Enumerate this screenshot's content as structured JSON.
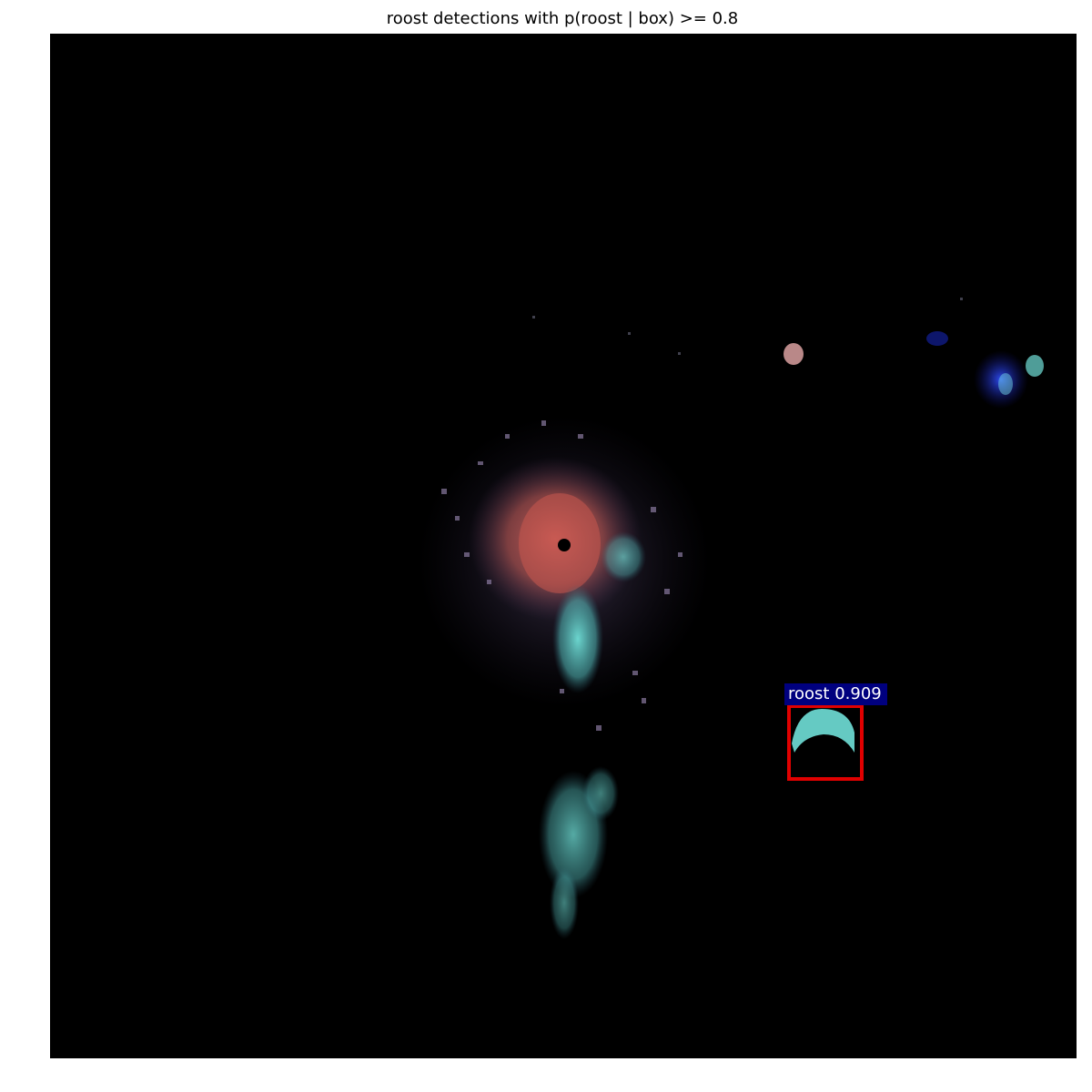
{
  "title": "roost detections with p(roost | box) >= 0.8",
  "detections": [
    {
      "label": "roost 0.909",
      "box_color": "#e00000",
      "label_bg": "#00007f"
    }
  ],
  "colors": {
    "background": "#000000",
    "echo_red": "#c0504d",
    "echo_cyan": "#5fd6cf",
    "echo_blue": "#1a2bd6",
    "echo_pink": "#d9a0a0"
  }
}
